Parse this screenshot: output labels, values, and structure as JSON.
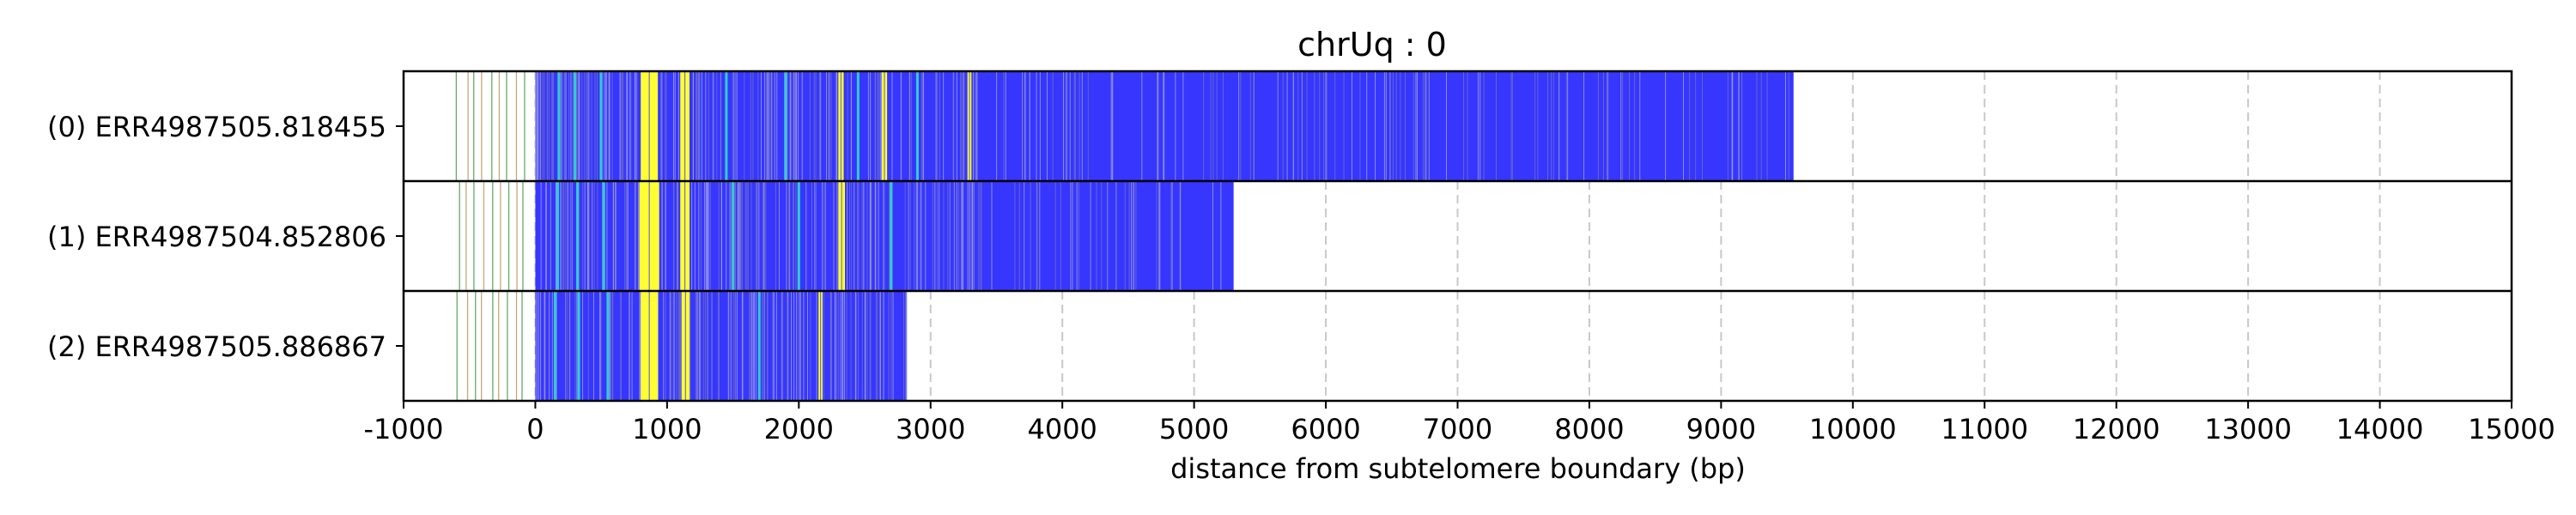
{
  "chart_data": {
    "type": "track",
    "title": "chrUq : 0",
    "xlabel": "distance from subtelomere boundary (bp)",
    "xlim": [
      -1000,
      15000
    ],
    "x_ticks": [
      -1000,
      0,
      1000,
      2000,
      3000,
      4000,
      5000,
      6000,
      7000,
      8000,
      9000,
      10000,
      11000,
      12000,
      13000,
      14000,
      15000
    ],
    "x_tick_labels": [
      "-1000",
      "0",
      "1000",
      "2000",
      "3000",
      "4000",
      "5000",
      "6000",
      "7000",
      "8000",
      "9000",
      "10000",
      "11000",
      "12000",
      "13000",
      "14000",
      "15000"
    ],
    "grid": "vertical dashed",
    "colors": {
      "repeat": "#3636ff",
      "highlight": "#ffff33",
      "variant": "#33cccc",
      "light_variant": "#a0a0f0",
      "subtelomere_green": "#66aa66",
      "subtelomere_tan": "#c8a878"
    },
    "reads": [
      {
        "label": "(0) ERR4987505.818455",
        "start": 0,
        "end": 9550,
        "yellow_bands": [
          [
            800,
            930
          ],
          [
            1100,
            1170
          ],
          [
            2300,
            2340
          ],
          [
            2630,
            2670
          ],
          [
            3280,
            3310
          ]
        ],
        "cyan_lines": [
          180,
          300,
          500,
          1450,
          1900,
          2450,
          2900
        ]
      },
      {
        "label": "(1) ERR4987504.852806",
        "start": 0,
        "end": 5300,
        "yellow_bands": [
          [
            790,
            940
          ],
          [
            1100,
            1170
          ],
          [
            2300,
            2350
          ]
        ],
        "cyan_lines": [
          170,
          320,
          520,
          1500,
          2000,
          2700
        ]
      },
      {
        "label": "(2) ERR4987505.886867",
        "start": 0,
        "end": 2820,
        "yellow_bands": [
          [
            800,
            930
          ],
          [
            1110,
            1170
          ],
          [
            2150,
            2180
          ]
        ],
        "cyan_lines": [
          150,
          330,
          550,
          1700
        ]
      }
    ]
  }
}
